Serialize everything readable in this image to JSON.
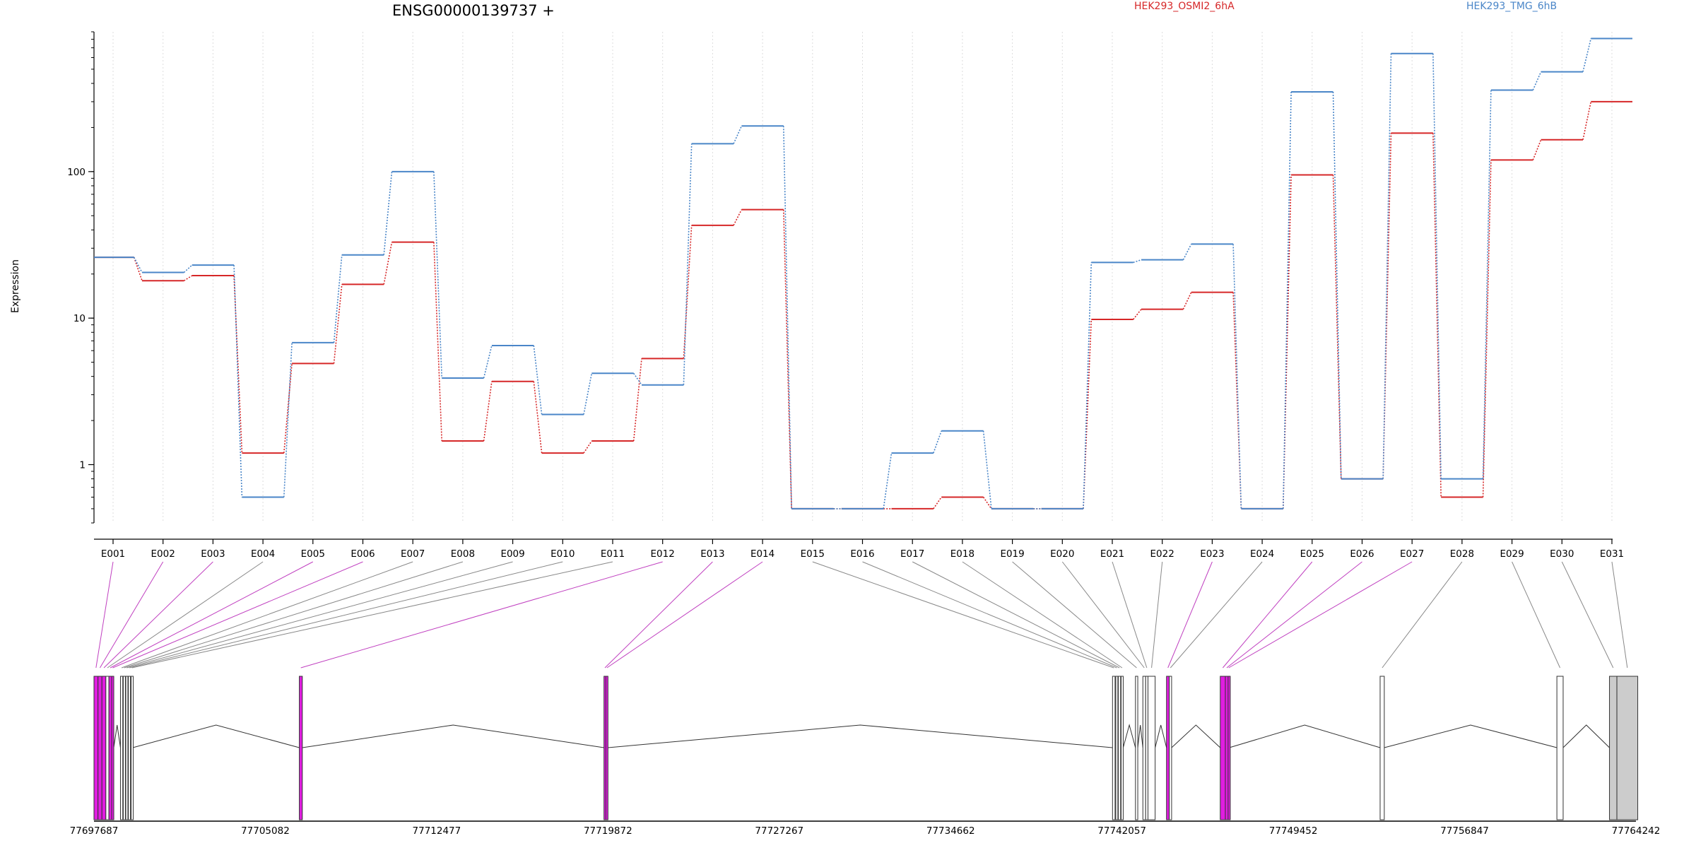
{
  "chart_data": {
    "type": "line",
    "title": "ENSG00000139737 +",
    "ylabel": "Expression",
    "yscale": "log",
    "ylim": [
      0.4,
      900
    ],
    "yticks": [
      1,
      10,
      100
    ],
    "ytick_labels": [
      "1",
      "10",
      "100"
    ],
    "grid": "vertical dotted lines at each exon",
    "legend_position": "top",
    "categories": [
      "E001",
      "E002",
      "E003",
      "E004",
      "E005",
      "E006",
      "E007",
      "E008",
      "E009",
      "E010",
      "E011",
      "E012",
      "E013",
      "E014",
      "E015",
      "E016",
      "E017",
      "E018",
      "E019",
      "E020",
      "E021",
      "E022",
      "E023",
      "E024",
      "E025",
      "E026",
      "E027",
      "E028",
      "E029",
      "E030",
      "E031"
    ],
    "series": [
      {
        "name": "HEK293_OSMI2_6hA",
        "color": "#d62728",
        "values": [
          26,
          18,
          19.5,
          1.2,
          4.9,
          17,
          33,
          1.45,
          3.7,
          1.2,
          1.45,
          5.3,
          43,
          55,
          0.5,
          0.5,
          0.5,
          0.6,
          0.5,
          0.5,
          9.8,
          11.5,
          15,
          0.5,
          95,
          0.8,
          183,
          0.6,
          120,
          165,
          300
        ]
      },
      {
        "name": "HEK293_TMG_6hB",
        "color": "#4a86c8",
        "values": [
          26,
          20.5,
          23,
          0.6,
          6.8,
          27,
          100,
          3.9,
          6.5,
          2.2,
          4.2,
          3.5,
          155,
          205,
          0.5,
          0.5,
          1.2,
          1.7,
          0.5,
          0.5,
          24,
          25,
          32,
          0.5,
          350,
          0.8,
          640,
          0.8,
          360,
          480,
          810
        ]
      }
    ],
    "gene_model": {
      "coordinate_ticks": [
        77697687,
        77705082,
        77712477,
        77719872,
        77727267,
        77734662,
        77742057,
        77749452,
        77756847,
        77764242
      ],
      "exons": [
        {
          "id": "E001",
          "start": 77697687,
          "end": 77697860,
          "highlight": true
        },
        {
          "id": "E002",
          "start": 77697860,
          "end": 77698030,
          "highlight": true
        },
        {
          "id": "E003",
          "start": 77698030,
          "end": 77698200,
          "highlight": true
        },
        {
          "id": "E004",
          "start": 77698200,
          "end": 77698330,
          "highlight": false
        },
        {
          "id": "E005",
          "start": 77698330,
          "end": 77698450,
          "highlight": true
        },
        {
          "id": "E006",
          "start": 77698450,
          "end": 77698540,
          "highlight": true
        },
        {
          "id": "E007",
          "start": 77698830,
          "end": 77698930,
          "highlight": false
        },
        {
          "id": "E008",
          "start": 77698950,
          "end": 77699030,
          "highlight": false
        },
        {
          "id": "E009",
          "start": 77699060,
          "end": 77699140,
          "highlight": false
        },
        {
          "id": "E010",
          "start": 77699170,
          "end": 77699260,
          "highlight": false
        },
        {
          "id": "E011",
          "start": 77699290,
          "end": 77699360,
          "highlight": false
        },
        {
          "id": "E012",
          "start": 77706550,
          "end": 77706680,
          "highlight": true
        },
        {
          "id": "E013",
          "start": 77719700,
          "end": 77719780,
          "highlight": true
        },
        {
          "id": "E014",
          "start": 77719780,
          "end": 77719870,
          "highlight": true
        },
        {
          "id": "E015",
          "start": 77741650,
          "end": 77741760,
          "highlight": false
        },
        {
          "id": "E016",
          "start": 77741790,
          "end": 77741880,
          "highlight": false
        },
        {
          "id": "E017",
          "start": 77741900,
          "end": 77742000,
          "highlight": false
        },
        {
          "id": "E018",
          "start": 77742020,
          "end": 77742110,
          "highlight": false
        },
        {
          "id": "E019",
          "start": 77742640,
          "end": 77742740,
          "highlight": false
        },
        {
          "id": "E020",
          "start": 77742960,
          "end": 77743080,
          "highlight": false
        },
        {
          "id": "E021",
          "start": 77743080,
          "end": 77743180,
          "highlight": false
        },
        {
          "id": "E022",
          "start": 77743180,
          "end": 77743490,
          "highlight": false
        },
        {
          "id": "E023",
          "start": 77743980,
          "end": 77744100,
          "highlight": true
        },
        {
          "id": "E024",
          "start": 77744100,
          "end": 77744200,
          "highlight": false
        },
        {
          "id": "E025",
          "start": 77746300,
          "end": 77746520,
          "highlight": true
        },
        {
          "id": "E026",
          "start": 77746520,
          "end": 77746640,
          "highlight": true
        },
        {
          "id": "E027",
          "start": 77746640,
          "end": 77746690,
          "highlight": true
        },
        {
          "id": "E028",
          "start": 77753200,
          "end": 77753380,
          "highlight": false
        },
        {
          "id": "E029",
          "start": 77760830,
          "end": 77761100,
          "highlight": false
        },
        {
          "id": "E030",
          "start": 77763100,
          "end": 77763420,
          "highlight": false
        },
        {
          "id": "E031",
          "start": 77763420,
          "end": 77764320,
          "highlight": false
        }
      ]
    }
  },
  "colors": {
    "osmi": "#d62728",
    "tmg": "#4a86c8",
    "highlight_exon": "#e11de1",
    "plain_exon": "#ffffff",
    "last_exon": "#cccccc",
    "grid": "#dddddd"
  }
}
